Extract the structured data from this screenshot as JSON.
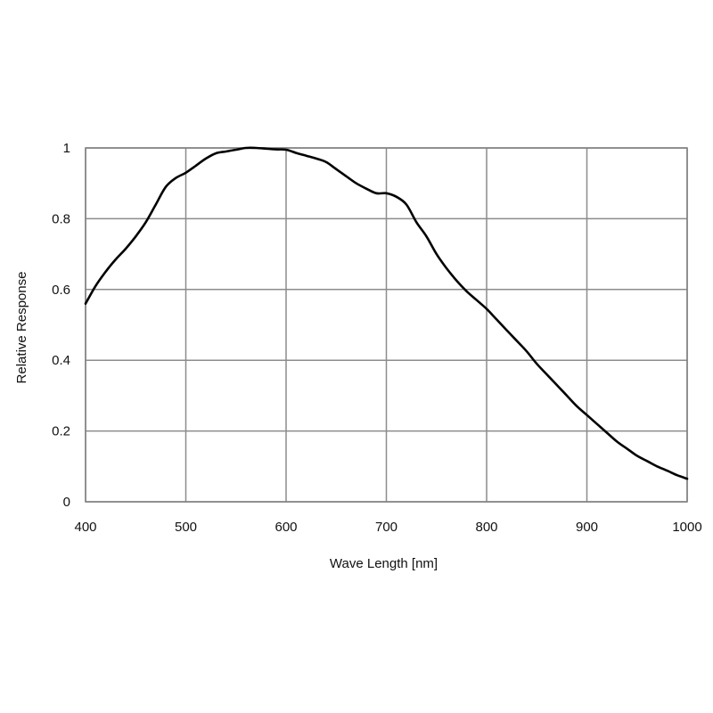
{
  "chart_data": {
    "type": "line",
    "title": "",
    "xlabel": "Wave Length [nm]",
    "ylabel": "Relative Response",
    "xlim": [
      400,
      1000
    ],
    "ylim": [
      0,
      1
    ],
    "x_ticks": [
      400,
      500,
      600,
      700,
      800,
      900,
      1000
    ],
    "x_tick_labels": [
      "400",
      "500",
      "600",
      "700",
      "800",
      "900",
      "1000"
    ],
    "y_ticks": [
      0,
      0.2,
      0.4,
      0.6,
      0.8,
      1
    ],
    "y_tick_labels": [
      "0",
      "0.2",
      "0.4",
      "0.6",
      "0.8",
      "1"
    ],
    "grid": true,
    "legend": "none",
    "colors": {
      "line": "#000000",
      "grid": "#8c8c8c",
      "frame": "#7f7f7f"
    },
    "series": [
      {
        "x": [
          400,
          410,
          420,
          430,
          440,
          450,
          460,
          470,
          480,
          490,
          500,
          510,
          520,
          530,
          540,
          550,
          560,
          570,
          580,
          590,
          600,
          610,
          620,
          630,
          640,
          650,
          660,
          670,
          680,
          690,
          700,
          710,
          720,
          730,
          740,
          750,
          760,
          770,
          780,
          790,
          800,
          810,
          820,
          830,
          840,
          850,
          860,
          870,
          880,
          890,
          900,
          910,
          920,
          930,
          940,
          950,
          960,
          970,
          980,
          990,
          1000
        ],
        "y": [
          0.56,
          0.61,
          0.65,
          0.685,
          0.715,
          0.75,
          0.79,
          0.84,
          0.89,
          0.915,
          0.93,
          0.95,
          0.97,
          0.985,
          0.99,
          0.995,
          1.0,
          1.0,
          0.998,
          0.996,
          0.995,
          0.986,
          0.978,
          0.97,
          0.96,
          0.94,
          0.92,
          0.9,
          0.885,
          0.872,
          0.872,
          0.862,
          0.84,
          0.79,
          0.75,
          0.7,
          0.66,
          0.625,
          0.595,
          0.57,
          0.545,
          0.515,
          0.485,
          0.455,
          0.425,
          0.39,
          0.36,
          0.33,
          0.3,
          0.27,
          0.245,
          0.22,
          0.195,
          0.17,
          0.15,
          0.13,
          0.115,
          0.1,
          0.088,
          0.075,
          0.065
        ]
      }
    ]
  }
}
